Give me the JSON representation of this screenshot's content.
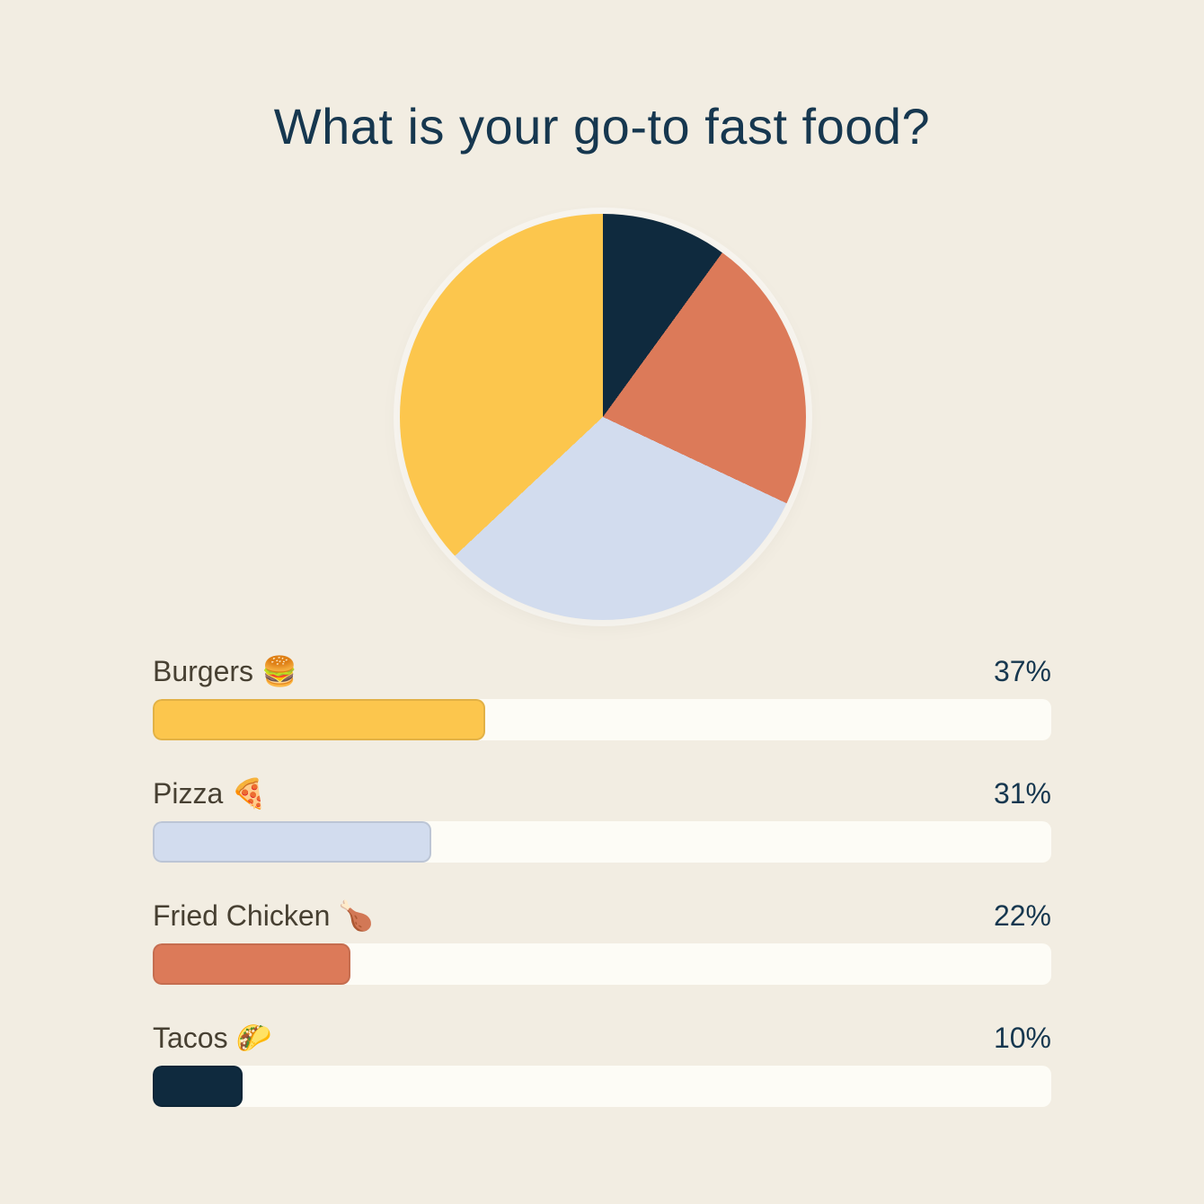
{
  "page": {
    "background": "#f2ede2",
    "title": "What is your go-to fast food?"
  },
  "chart_data": {
    "type": "pie",
    "title": "What is your go-to fast food?",
    "unit": "%",
    "categories": [
      "Burgers 🍔",
      "Pizza 🍕",
      "Fried Chicken 🍗",
      "Tacos 🌮"
    ],
    "values": [
      37,
      31,
      22,
      10
    ],
    "value_labels": [
      "37%",
      "31%",
      "22%",
      "10%"
    ],
    "colors": [
      "#fcc64d",
      "#d2dcee",
      "#dc7a59",
      "#0f2a3e"
    ],
    "pie_start": "top",
    "pie_direction": "clockwise",
    "pie_slice_order": [
      3,
      2,
      1,
      0
    ],
    "legend_position": "bottom-bars",
    "bar_track_color": "#fdfcf6",
    "bar_max": 100
  }
}
